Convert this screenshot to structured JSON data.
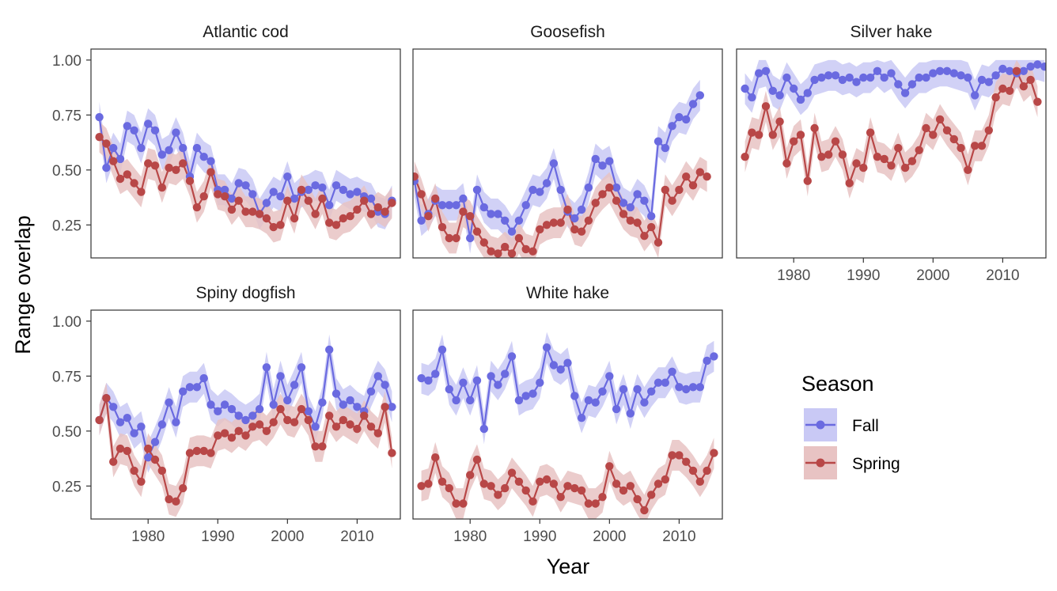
{
  "chart_data": {
    "type": "line",
    "ylabel": "Range overlap",
    "xlabel": "Year",
    "x_ticks": [
      1980,
      1990,
      2000,
      2010
    ],
    "y_ticks": [
      0.25,
      0.5,
      0.75,
      1.0
    ],
    "y_tick_labels": [
      "0.25",
      "0.50",
      "0.75",
      "1.00"
    ],
    "x_tick_labels": [
      "1980",
      "1990",
      "2000",
      "2010"
    ],
    "xlim": [
      1971.8,
      2016.2
    ],
    "ylim": [
      0.1,
      1.05
    ],
    "legend": {
      "title": "Season",
      "position": "right",
      "entries": [
        {
          "label": "Fall",
          "color": "#6a6ae0",
          "fill": "#c9c9f5"
        },
        {
          "label": "Spring",
          "color": "#b84747",
          "fill": "#e8c3c3"
        }
      ]
    },
    "ribbon_halfwidth": 0.07,
    "panels": [
      {
        "title": "Atlantic cod",
        "x_start": 1973,
        "series": [
          {
            "name": "Fall",
            "values": [
              0.74,
              0.51,
              0.6,
              0.55,
              0.7,
              0.68,
              0.6,
              0.71,
              0.68,
              0.57,
              0.59,
              0.67,
              0.6,
              0.47,
              0.6,
              0.56,
              0.54,
              0.41,
              0.41,
              0.37,
              0.44,
              0.43,
              0.39,
              0.3,
              0.35,
              0.4,
              0.38,
              0.47,
              0.37,
              0.4,
              0.41,
              0.43,
              0.42,
              0.34,
              0.43,
              0.41,
              0.39,
              0.4,
              0.38,
              0.37,
              0.31,
              0.3,
              0.36
            ]
          },
          {
            "name": "Spring",
            "values": [
              0.65,
              0.62,
              0.54,
              0.46,
              0.48,
              0.44,
              0.4,
              0.53,
              0.52,
              0.42,
              0.51,
              0.5,
              0.53,
              0.45,
              0.33,
              0.38,
              0.49,
              0.39,
              0.38,
              0.32,
              0.36,
              0.31,
              0.31,
              0.3,
              0.28,
              0.24,
              0.25,
              0.36,
              0.28,
              0.41,
              0.36,
              0.3,
              0.37,
              0.26,
              0.25,
              0.28,
              0.29,
              0.32,
              0.36,
              0.3,
              0.33,
              0.31,
              0.35
            ]
          }
        ]
      },
      {
        "title": "Goosefish",
        "x_start": 1972,
        "series": [
          {
            "name": "Fall",
            "values": [
              0.45,
              0.27,
              0.3,
              0.36,
              0.34,
              0.34,
              0.34,
              0.37,
              0.19,
              0.41,
              0.33,
              0.3,
              0.3,
              0.27,
              0.22,
              0.27,
              0.34,
              0.41,
              0.4,
              0.44,
              0.53,
              0.41,
              0.31,
              0.28,
              0.32,
              0.42,
              0.55,
              0.52,
              0.54,
              0.42,
              0.35,
              0.33,
              0.39,
              0.36,
              0.29,
              0.63,
              0.6,
              0.7,
              0.74,
              0.73,
              0.8,
              0.84
            ]
          },
          {
            "name": "Spring",
            "values": [
              0.47,
              0.39,
              0.29,
              0.37,
              0.24,
              0.19,
              0.19,
              0.31,
              0.29,
              0.22,
              0.17,
              0.13,
              0.12,
              0.15,
              0.12,
              0.19,
              0.14,
              0.13,
              0.23,
              0.25,
              0.26,
              0.26,
              0.32,
              0.23,
              0.22,
              0.27,
              0.35,
              0.39,
              0.42,
              0.36,
              0.3,
              0.27,
              0.26,
              0.2,
              0.24,
              0.17,
              0.41,
              0.36,
              0.41,
              0.47,
              0.43,
              0.49,
              0.47
            ]
          }
        ]
      },
      {
        "title": "Silver hake",
        "x_start": 1973,
        "series": [
          {
            "name": "Fall",
            "values": [
              0.87,
              0.83,
              0.94,
              0.95,
              0.86,
              0.84,
              0.92,
              0.87,
              0.82,
              0.85,
              0.91,
              0.92,
              0.93,
              0.93,
              0.91,
              0.92,
              0.9,
              0.92,
              0.92,
              0.95,
              0.92,
              0.94,
              0.89,
              0.85,
              0.89,
              0.92,
              0.92,
              0.94,
              0.95,
              0.95,
              0.94,
              0.93,
              0.92,
              0.84,
              0.91,
              0.9,
              0.93,
              0.96,
              0.95,
              0.94,
              0.95,
              0.97,
              0.98,
              0.97
            ]
          },
          {
            "name": "Spring",
            "values": [
              0.56,
              0.67,
              0.66,
              0.79,
              0.66,
              0.72,
              0.53,
              0.63,
              0.66,
              0.45,
              0.69,
              0.56,
              0.57,
              0.63,
              0.57,
              0.44,
              0.53,
              0.51,
              0.67,
              0.56,
              0.55,
              0.52,
              0.6,
              0.51,
              0.54,
              0.59,
              0.69,
              0.66,
              0.73,
              0.68,
              0.64,
              0.6,
              0.5,
              0.61,
              0.61,
              0.68,
              0.83,
              0.87,
              0.86,
              0.95,
              0.88,
              0.91,
              0.81
            ]
          }
        ]
      },
      {
        "title": "Spiny dogfish",
        "x_start": 1973,
        "series": [
          {
            "name": "Fall",
            "values": [
              0.55,
              0.65,
              0.61,
              0.54,
              0.56,
              0.49,
              0.52,
              0.38,
              0.45,
              0.53,
              0.63,
              0.54,
              0.68,
              0.7,
              0.7,
              0.74,
              0.62,
              0.59,
              0.62,
              0.6,
              0.57,
              0.55,
              0.57,
              0.6,
              0.79,
              0.62,
              0.75,
              0.64,
              0.71,
              0.79,
              0.59,
              0.52,
              0.63,
              0.87,
              0.67,
              0.62,
              0.64,
              0.61,
              0.59,
              0.68,
              0.75,
              0.71,
              0.61
            ]
          },
          {
            "name": "Spring",
            "values": [
              0.55,
              0.65,
              0.36,
              0.42,
              0.41,
              0.32,
              0.27,
              0.42,
              0.37,
              0.32,
              0.19,
              0.18,
              0.24,
              0.4,
              0.41,
              0.41,
              0.4,
              0.48,
              0.49,
              0.47,
              0.5,
              0.48,
              0.52,
              0.53,
              0.5,
              0.54,
              0.6,
              0.55,
              0.54,
              0.6,
              0.55,
              0.43,
              0.43,
              0.57,
              0.52,
              0.55,
              0.53,
              0.51,
              0.57,
              0.52,
              0.49,
              0.61,
              0.4
            ]
          }
        ]
      },
      {
        "title": "White hake",
        "x_start": 1973,
        "series": [
          {
            "name": "Fall",
            "values": [
              0.74,
              0.73,
              0.76,
              0.87,
              0.69,
              0.64,
              0.72,
              0.64,
              0.73,
              0.51,
              0.75,
              0.71,
              0.76,
              0.84,
              0.64,
              0.66,
              0.67,
              0.72,
              0.88,
              0.8,
              0.78,
              0.81,
              0.66,
              0.56,
              0.64,
              0.63,
              0.68,
              0.75,
              0.6,
              0.69,
              0.58,
              0.69,
              0.63,
              0.68,
              0.72,
              0.72,
              0.77,
              0.7,
              0.69,
              0.7,
              0.7,
              0.82,
              0.84
            ]
          },
          {
            "name": "Spring",
            "values": [
              0.25,
              0.26,
              0.38,
              0.27,
              0.24,
              0.17,
              0.17,
              0.3,
              0.37,
              0.26,
              0.25,
              0.21,
              0.24,
              0.31,
              0.27,
              0.23,
              0.18,
              0.27,
              0.28,
              0.26,
              0.2,
              0.25,
              0.24,
              0.23,
              0.17,
              0.17,
              0.2,
              0.34,
              0.26,
              0.23,
              0.25,
              0.19,
              0.14,
              0.21,
              0.26,
              0.28,
              0.39,
              0.39,
              0.36,
              0.32,
              0.27,
              0.32,
              0.4
            ]
          }
        ]
      }
    ]
  }
}
